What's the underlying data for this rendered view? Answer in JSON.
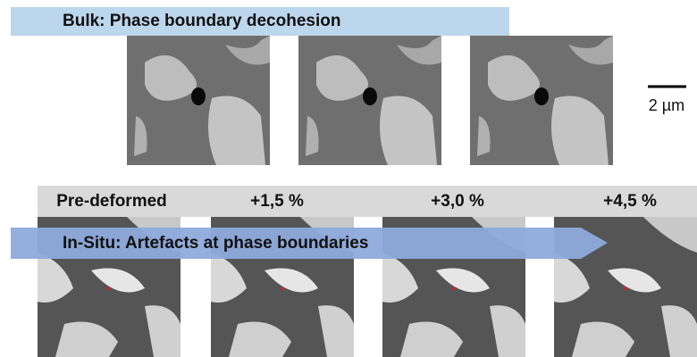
{
  "top_banner": "Bulk: Phase boundary decohesion",
  "scale_bar": "2 µm",
  "columns": [
    "Pre-deformed",
    "+1,5 %",
    "+3,0 %",
    "+4,5 %"
  ],
  "bottom_banner": "In-Situ: Artefacts at phase boundaries"
}
